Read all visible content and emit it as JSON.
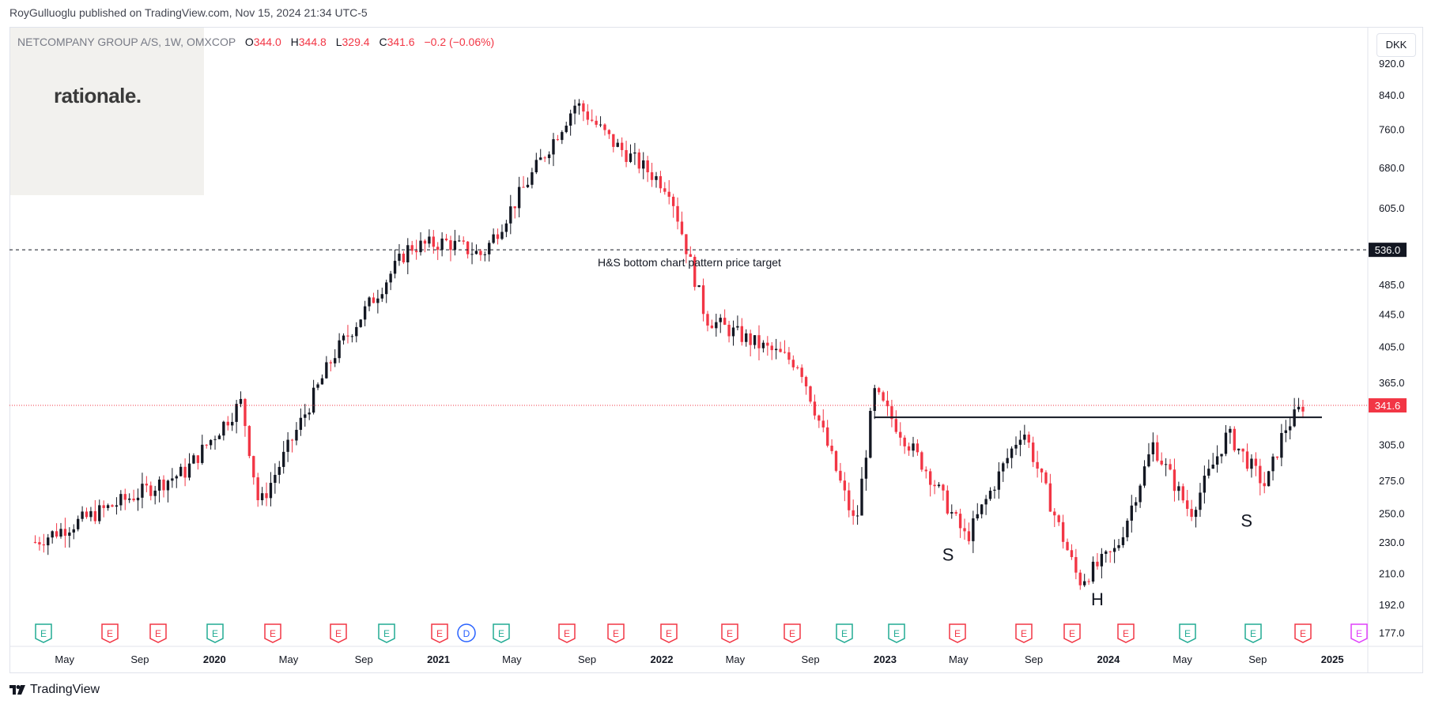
{
  "header": {
    "published_by": "RoyGulluoglu published on TradingView.com, Nov 15, 2024 21:34 UTC-5"
  },
  "logo": {
    "text": "rationale."
  },
  "legend": {
    "symbol": "NETCOMPANY GROUP A/S, 1W, OMXCOP",
    "open_label": "O",
    "open": "344.0",
    "high_label": "H",
    "high": "344.8",
    "low_label": "L",
    "low": "329.4",
    "close_label": "C",
    "close": "341.6",
    "change": "−0.2 (−0.06%)"
  },
  "currency": "DKK",
  "footer": {
    "brand": "TradingView"
  },
  "colors": {
    "up": "#131722",
    "down": "#f23645",
    "target_line": "#131722",
    "earnings_green": "#22ab94",
    "earnings_red": "#f23645",
    "dividend_blue": "#2962ff",
    "future_purple": "#e040fb"
  },
  "chart_data": {
    "type": "candlestick",
    "interval": "1W",
    "y_scale": "log",
    "ylim": [
      170,
      990
    ],
    "y_ticks": [
      177.0,
      192.0,
      210.0,
      230.0,
      250.0,
      275.0,
      305.0,
      365.0,
      405.0,
      445.0,
      485.0,
      605.0,
      680.0,
      760.0,
      840.0,
      920.0
    ],
    "x_ticks": [
      "May",
      "Sep",
      "2020",
      "May",
      "Sep",
      "2021",
      "May",
      "Sep",
      "2022",
      "May",
      "Sep",
      "2023",
      "May",
      "Sep",
      "2024",
      "May",
      "Sep",
      "2025"
    ],
    "last_price": 341.6,
    "target_price": 536.0,
    "neckline_price": 330,
    "annotations": [
      {
        "text": "H&S bottom chart pattern price target"
      },
      {
        "text": "S"
      },
      {
        "text": "H"
      },
      {
        "text": "S"
      }
    ],
    "key_prices": [
      {
        "date": "2019-03",
        "price": 230
      },
      {
        "date": "2019-11",
        "price": 282
      },
      {
        "date": "2020-02",
        "price": 345
      },
      {
        "date": "2020-03",
        "price": 255
      },
      {
        "date": "2020-07",
        "price": 395
      },
      {
        "date": "2020-11",
        "price": 540
      },
      {
        "date": "2021-01",
        "price": 548
      },
      {
        "date": "2021-03",
        "price": 528
      },
      {
        "date": "2021-08",
        "price": 820
      },
      {
        "date": "2021-10",
        "price": 730
      },
      {
        "date": "2022-01",
        "price": 640
      },
      {
        "date": "2022-03",
        "price": 440
      },
      {
        "date": "2022-06",
        "price": 405
      },
      {
        "date": "2022-08",
        "price": 385
      },
      {
        "date": "2022-11",
        "price": 240
      },
      {
        "date": "2022-12",
        "price": 355
      },
      {
        "date": "2023-03",
        "price": 280
      },
      {
        "date": "2023-05",
        "price": 232
      },
      {
        "date": "2023-08",
        "price": 320
      },
      {
        "date": "2023-11",
        "price": 205
      },
      {
        "date": "2024-01",
        "price": 225
      },
      {
        "date": "2024-03",
        "price": 305
      },
      {
        "date": "2024-05",
        "price": 250
      },
      {
        "date": "2024-07",
        "price": 315
      },
      {
        "date": "2024-09",
        "price": 270
      },
      {
        "date": "2024-10",
        "price": 318
      },
      {
        "date": "2024-11",
        "price": 341.6
      }
    ],
    "events": [
      {
        "type": "E",
        "color": "green"
      },
      {
        "type": "E",
        "color": "red"
      },
      {
        "type": "E",
        "color": "red"
      },
      {
        "type": "E",
        "color": "green"
      },
      {
        "type": "E",
        "color": "red"
      },
      {
        "type": "E",
        "color": "red"
      },
      {
        "type": "E",
        "color": "green"
      },
      {
        "type": "E",
        "color": "red"
      },
      {
        "type": "D",
        "color": "blue"
      },
      {
        "type": "E",
        "color": "green"
      },
      {
        "type": "E",
        "color": "red"
      },
      {
        "type": "E",
        "color": "red"
      },
      {
        "type": "E",
        "color": "red"
      },
      {
        "type": "E",
        "color": "red"
      },
      {
        "type": "E",
        "color": "red"
      },
      {
        "type": "E",
        "color": "green"
      },
      {
        "type": "E",
        "color": "green"
      },
      {
        "type": "E",
        "color": "red"
      },
      {
        "type": "E",
        "color": "red"
      },
      {
        "type": "E",
        "color": "red"
      },
      {
        "type": "E",
        "color": "red"
      },
      {
        "type": "E",
        "color": "green"
      },
      {
        "type": "E",
        "color": "green"
      },
      {
        "type": "E",
        "color": "red"
      },
      {
        "type": "E",
        "color": "purple"
      }
    ]
  }
}
